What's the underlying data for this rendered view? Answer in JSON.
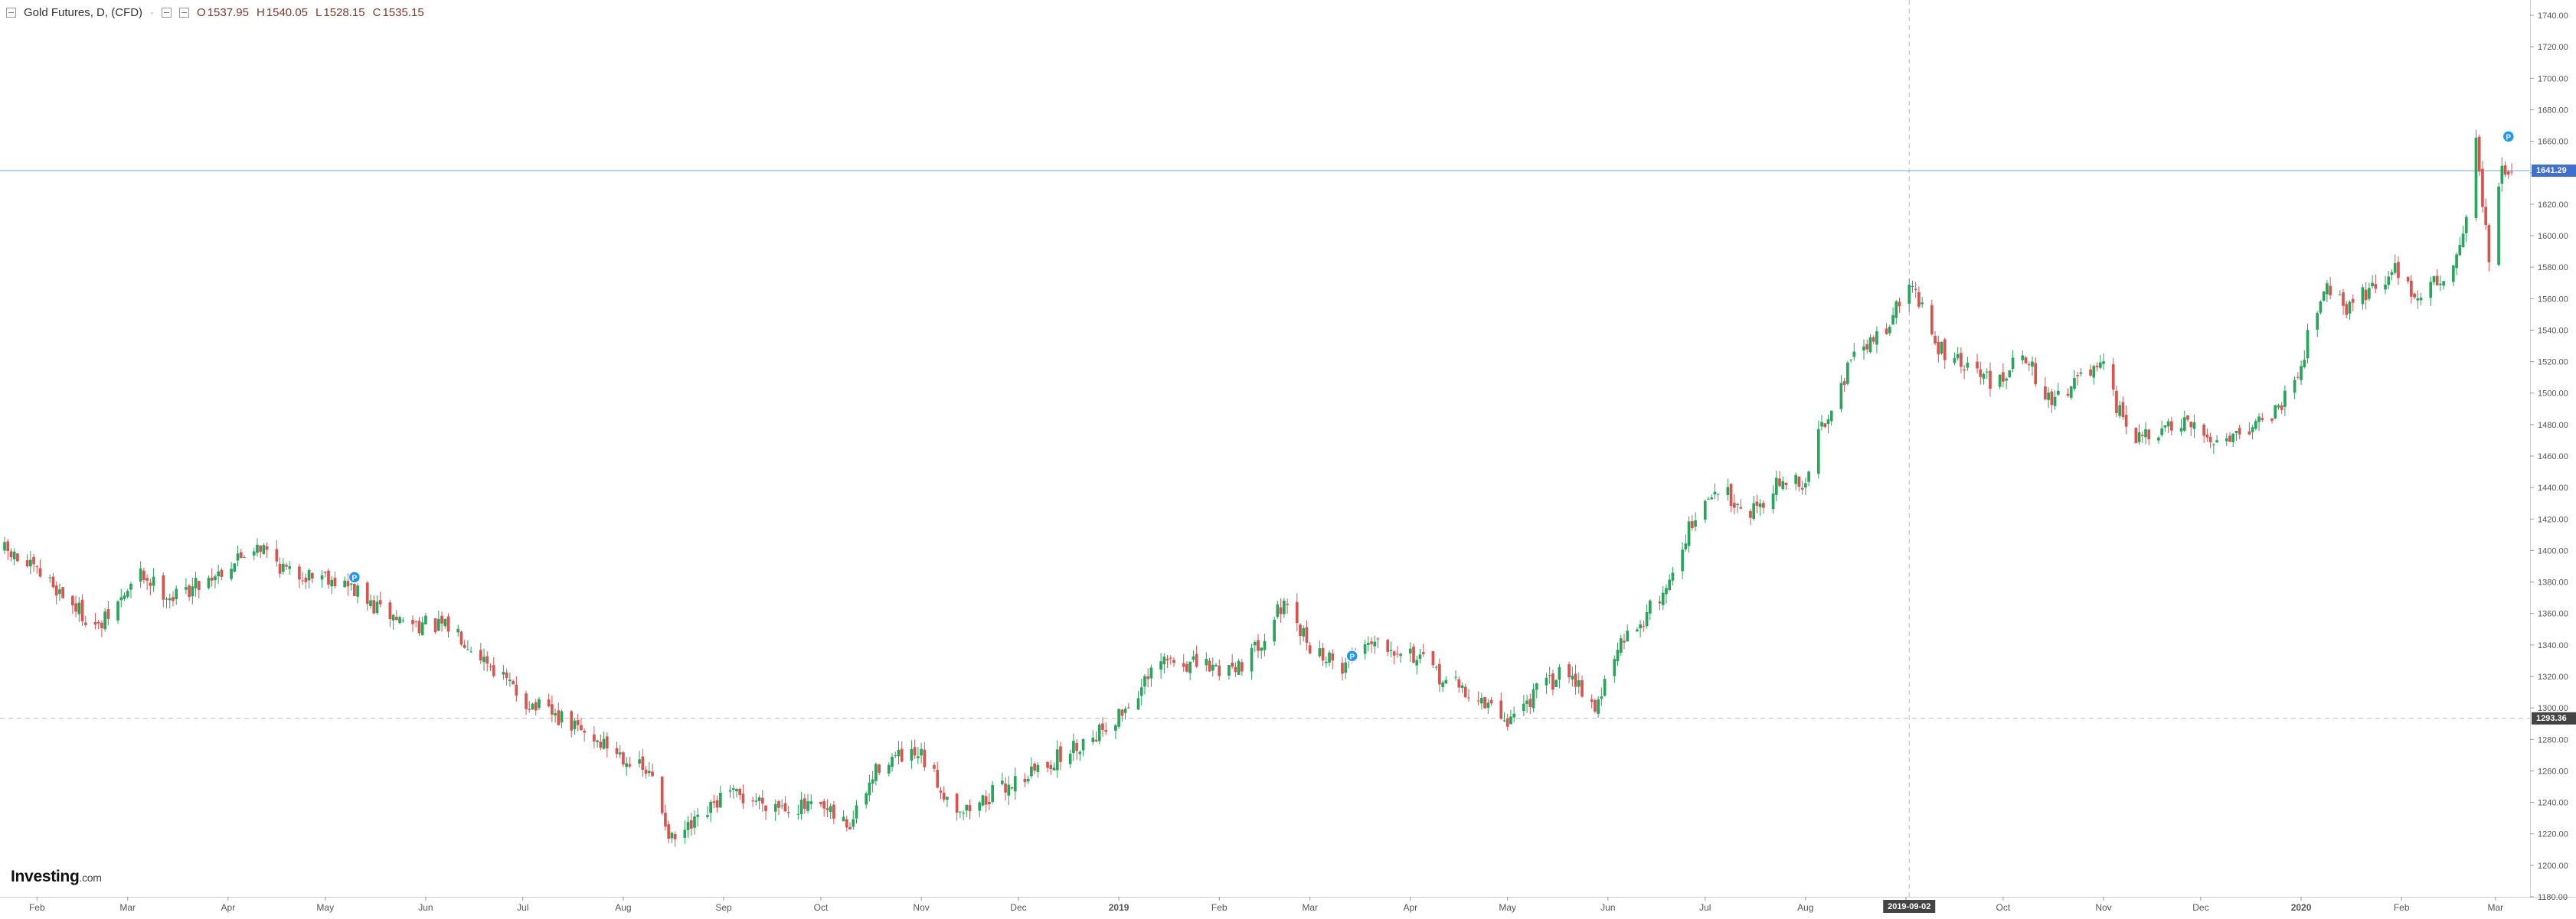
{
  "header": {
    "title": "Gold Futures, D, (CFD)",
    "dot": "·",
    "open_label": "O",
    "open": "1537.95",
    "high_label": "H",
    "high": "1540.05",
    "low_label": "L",
    "low": "1528.15",
    "close_label": "C",
    "close": "1535.15"
  },
  "logo": {
    "brand": "Investing",
    "suffix": ".com"
  },
  "colors": {
    "up": "#26a65b",
    "down": "#d9534f",
    "price_line": "#9ecae1",
    "price_label_bg": "#3f6fd0",
    "crosshair_label_bg": "#444444",
    "event_marker": "#2196f3"
  },
  "crosshair": {
    "date_label": "2019-09-02",
    "price_label": "1293.36",
    "price": 1293.36
  },
  "current_price": {
    "label": "1641.29",
    "value": 1641.29
  },
  "event_marker_label": "P",
  "chart_data": {
    "type": "candlestick",
    "title": "Gold Futures, D, (CFD)",
    "xlabel": "",
    "ylabel": "",
    "ylim": [
      1190,
      1745
    ],
    "y_ticks": [
      "1740.00",
      "1720.00",
      "1700.00",
      "1680.00",
      "1660.00",
      "1640.00",
      "1620.00",
      "1600.00",
      "1580.00",
      "1560.00",
      "1540.00",
      "1520.00",
      "1500.00",
      "1480.00",
      "1460.00",
      "1440.00",
      "1420.00",
      "1400.00",
      "1380.00",
      "1360.00",
      "1340.00",
      "1320.00",
      "1300.00",
      "1280.00",
      "1260.00",
      "1240.00",
      "1220.00",
      "1200.00",
      "1180.00"
    ],
    "x_ticks": [
      "Feb",
      "Mar",
      "Apr",
      "May",
      "Jun",
      "Jul",
      "Aug",
      "Sep",
      "Oct",
      "Nov",
      "Dec",
      "2019",
      "Feb",
      "Mar",
      "Apr",
      "May",
      "Jun",
      "Jul",
      "Aug",
      "Sep",
      "Oct",
      "Nov",
      "Dec",
      "2020",
      "Feb",
      "Mar"
    ],
    "x_tick_dates": [
      "2018-02-01",
      "2018-03-01",
      "2018-04-01",
      "2018-05-01",
      "2018-06-01",
      "2018-07-01",
      "2018-08-01",
      "2018-09-01",
      "2018-10-01",
      "2018-11-01",
      "2018-12-01",
      "2019-01-01",
      "2019-02-01",
      "2019-03-01",
      "2019-04-01",
      "2019-05-01",
      "2019-06-01",
      "2019-07-01",
      "2019-08-01",
      "2019-09-01",
      "2019-10-01",
      "2019-11-01",
      "2019-12-01",
      "2020-01-01",
      "2020-02-01",
      "2020-03-01"
    ],
    "date_range": [
      "2018-01-22",
      "2020-03-06"
    ],
    "grid": false,
    "legend": "none",
    "series": [
      {
        "close_path": [
          [
            "2018-01-22",
            1400
          ],
          [
            "2018-02-05",
            1380
          ],
          [
            "2018-02-20",
            1350
          ],
          [
            "2018-03-05",
            1385
          ],
          [
            "2018-03-15",
            1370
          ],
          [
            "2018-04-01",
            1390
          ],
          [
            "2018-04-10",
            1405
          ],
          [
            "2018-04-20",
            1385
          ],
          [
            "2018-05-01",
            1385
          ],
          [
            "2018-05-10",
            1375
          ],
          [
            "2018-05-15",
            1365
          ],
          [
            "2018-05-25",
            1355
          ],
          [
            "2018-06-10",
            1350
          ],
          [
            "2018-06-20",
            1330
          ],
          [
            "2018-07-01",
            1305
          ],
          [
            "2018-07-15",
            1290
          ],
          [
            "2018-08-01",
            1270
          ],
          [
            "2018-08-10",
            1255
          ],
          [
            "2018-08-16",
            1215
          ],
          [
            "2018-08-25",
            1228
          ],
          [
            "2018-09-01",
            1245
          ],
          [
            "2018-09-15",
            1240
          ],
          [
            "2018-10-01",
            1235
          ],
          [
            "2018-10-10",
            1225
          ],
          [
            "2018-10-20",
            1268
          ],
          [
            "2018-11-01",
            1268
          ],
          [
            "2018-11-10",
            1240
          ],
          [
            "2018-11-15",
            1235
          ],
          [
            "2018-12-01",
            1255
          ],
          [
            "2018-12-15",
            1270
          ],
          [
            "2019-01-01",
            1295
          ],
          [
            "2019-01-15",
            1330
          ],
          [
            "2019-02-01",
            1325
          ],
          [
            "2019-02-10",
            1330
          ],
          [
            "2019-02-20",
            1365
          ],
          [
            "2019-03-01",
            1340
          ],
          [
            "2019-03-10",
            1325
          ],
          [
            "2019-03-20",
            1345
          ],
          [
            "2019-04-01",
            1335
          ],
          [
            "2019-04-10",
            1320
          ],
          [
            "2019-04-20",
            1308
          ],
          [
            "2019-05-01",
            1292
          ],
          [
            "2019-05-10",
            1310
          ],
          [
            "2019-05-20",
            1325
          ],
          [
            "2019-05-28",
            1300
          ],
          [
            "2019-06-05",
            1340
          ],
          [
            "2019-06-15",
            1365
          ],
          [
            "2019-06-20",
            1380
          ],
          [
            "2019-06-25",
            1410
          ],
          [
            "2019-07-05",
            1440
          ],
          [
            "2019-07-15",
            1425
          ],
          [
            "2019-07-25",
            1445
          ],
          [
            "2019-08-01",
            1440
          ],
          [
            "2019-08-05",
            1475
          ],
          [
            "2019-08-15",
            1520
          ],
          [
            "2019-08-25",
            1540
          ],
          [
            "2019-09-03",
            1570
          ],
          [
            "2019-09-10",
            1530
          ],
          [
            "2019-09-20",
            1515
          ],
          [
            "2019-10-01",
            1505
          ],
          [
            "2019-10-05",
            1535
          ],
          [
            "2019-10-15",
            1495
          ],
          [
            "2019-10-25",
            1510
          ],
          [
            "2019-11-01",
            1515
          ],
          [
            "2019-11-05",
            1490
          ],
          [
            "2019-11-12",
            1470
          ],
          [
            "2019-11-25",
            1480
          ],
          [
            "2019-12-05",
            1470
          ],
          [
            "2019-12-15",
            1478
          ],
          [
            "2019-12-25",
            1490
          ],
          [
            "2020-01-01",
            1520
          ],
          [
            "2020-01-08",
            1570
          ],
          [
            "2020-01-15",
            1555
          ],
          [
            "2020-01-25",
            1570
          ],
          [
            "2020-02-01",
            1580
          ],
          [
            "2020-02-05",
            1560
          ],
          [
            "2020-02-15",
            1575
          ],
          [
            "2020-02-20",
            1600
          ],
          [
            "2020-02-24",
            1660
          ],
          [
            "2020-02-28",
            1585
          ],
          [
            "2020-03-03",
            1640
          ],
          [
            "2020-03-06",
            1641
          ]
        ]
      }
    ]
  }
}
